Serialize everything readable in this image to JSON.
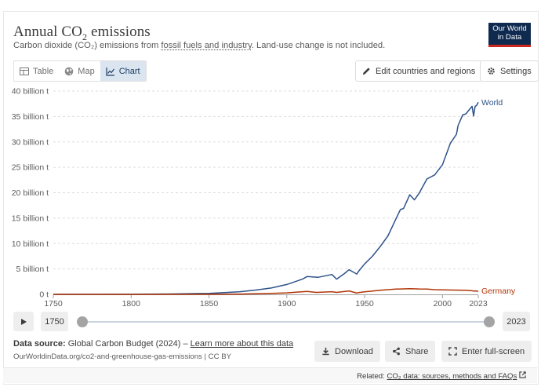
{
  "header": {
    "title_main": "Annual CO",
    "title_sub": "2",
    "title_tail": " emissions",
    "subtitle_pre": "Carbon dioxide (CO₂) emissions from ",
    "subtitle_link": "fossil fuels and industry",
    "subtitle_post": ". Land-use change is not included.",
    "logo_line1": "Our World",
    "logo_line2": "in Data"
  },
  "tabs": [
    {
      "label": "Table",
      "icon": "table-icon"
    },
    {
      "label": "Map",
      "icon": "globe-icon"
    },
    {
      "label": "Chart",
      "icon": "line-chart-icon",
      "active": true
    }
  ],
  "toolbar": {
    "edit_label": "Edit countries and regions",
    "settings_label": "Settings"
  },
  "timeline": {
    "start_year": "1750",
    "end_year": "2023"
  },
  "footer": {
    "source_label": "Data source:",
    "source_text": " Global Carbon Budget (2024) – ",
    "learn_more": "Learn more about this data",
    "url_text": "OurWorldinData.org/co2-and-greenhouse-gas-emissions | CC BY",
    "download_label": "Download",
    "share_label": "Share",
    "fullscreen_label": "Enter full-screen",
    "related_label": "Related: ",
    "related_link": "CO₂ data: sources, methods and FAQs"
  },
  "colors": {
    "world": "#2e528a",
    "germany": "#b13507",
    "grid": "#dddddd",
    "text": "#5b5b5b"
  },
  "chart_data": {
    "type": "line",
    "title": "Annual CO₂ emissions",
    "xlabel": "",
    "ylabel": "",
    "xlim": [
      1750,
      2023
    ],
    "ylim": [
      0,
      40000000000
    ],
    "x_ticks": [
      "1750",
      "1800",
      "1850",
      "1900",
      "1950",
      "2000",
      "2023"
    ],
    "y_ticks": [
      {
        "v": 0,
        "label": "0 t"
      },
      {
        "v": 5000000000,
        "label": "5 billion t"
      },
      {
        "v": 10000000000,
        "label": "10 billion t"
      },
      {
        "v": 15000000000,
        "label": "15 billion t"
      },
      {
        "v": 20000000000,
        "label": "20 billion t"
      },
      {
        "v": 25000000000,
        "label": "25 billion t"
      },
      {
        "v": 30000000000,
        "label": "30 billion t"
      },
      {
        "v": 35000000000,
        "label": "35 billion t"
      },
      {
        "v": 40000000000,
        "label": "40 billion t"
      }
    ],
    "series": [
      {
        "name": "World",
        "color": "#2e528a",
        "points": [
          [
            1750,
            9000000
          ],
          [
            1800,
            28000000
          ],
          [
            1825,
            70000000
          ],
          [
            1850,
            197000000
          ],
          [
            1860,
            360000000
          ],
          [
            1870,
            530000000
          ],
          [
            1880,
            850000000
          ],
          [
            1890,
            1250000000
          ],
          [
            1900,
            1950000000
          ],
          [
            1910,
            3000000000
          ],
          [
            1913,
            3500000000
          ],
          [
            1920,
            3350000000
          ],
          [
            1929,
            3900000000
          ],
          [
            1932,
            3000000000
          ],
          [
            1937,
            4100000000
          ],
          [
            1940,
            4850000000
          ],
          [
            1945,
            4000000000
          ],
          [
            1946,
            4500000000
          ],
          [
            1950,
            6000000000
          ],
          [
            1955,
            7500000000
          ],
          [
            1960,
            9400000000
          ],
          [
            1965,
            11500000000
          ],
          [
            1970,
            14800000000
          ],
          [
            1973,
            16700000000
          ],
          [
            1975,
            16900000000
          ],
          [
            1979,
            19600000000
          ],
          [
            1982,
            18600000000
          ],
          [
            1985,
            19900000000
          ],
          [
            1990,
            22700000000
          ],
          [
            1995,
            23500000000
          ],
          [
            2000,
            25500000000
          ],
          [
            2005,
            29700000000
          ],
          [
            2009,
            31500000000
          ],
          [
            2010,
            33200000000
          ],
          [
            2013,
            35300000000
          ],
          [
            2015,
            35500000000
          ],
          [
            2019,
            37000000000
          ],
          [
            2020,
            35100000000
          ],
          [
            2021,
            37000000000
          ],
          [
            2022,
            37200000000
          ],
          [
            2023,
            37800000000
          ]
        ]
      },
      {
        "name": "Germany",
        "color": "#b13507",
        "points": [
          [
            1750,
            0
          ],
          [
            1800,
            1000000
          ],
          [
            1850,
            20000000
          ],
          [
            1870,
            60000000
          ],
          [
            1890,
            180000000
          ],
          [
            1900,
            300000000
          ],
          [
            1913,
            580000000
          ],
          [
            1919,
            390000000
          ],
          [
            1929,
            530000000
          ],
          [
            1932,
            390000000
          ],
          [
            1940,
            680000000
          ],
          [
            1945,
            250000000
          ],
          [
            1946,
            350000000
          ],
          [
            1950,
            500000000
          ],
          [
            1960,
            810000000
          ],
          [
            1970,
            1030000000
          ],
          [
            1979,
            1120000000
          ],
          [
            1985,
            1060000000
          ],
          [
            1990,
            1050000000
          ],
          [
            1995,
            930000000
          ],
          [
            2000,
            900000000
          ],
          [
            2010,
            830000000
          ],
          [
            2015,
            800000000
          ],
          [
            2019,
            710000000
          ],
          [
            2020,
            650000000
          ],
          [
            2021,
            680000000
          ],
          [
            2023,
            600000000
          ]
        ]
      }
    ]
  }
}
